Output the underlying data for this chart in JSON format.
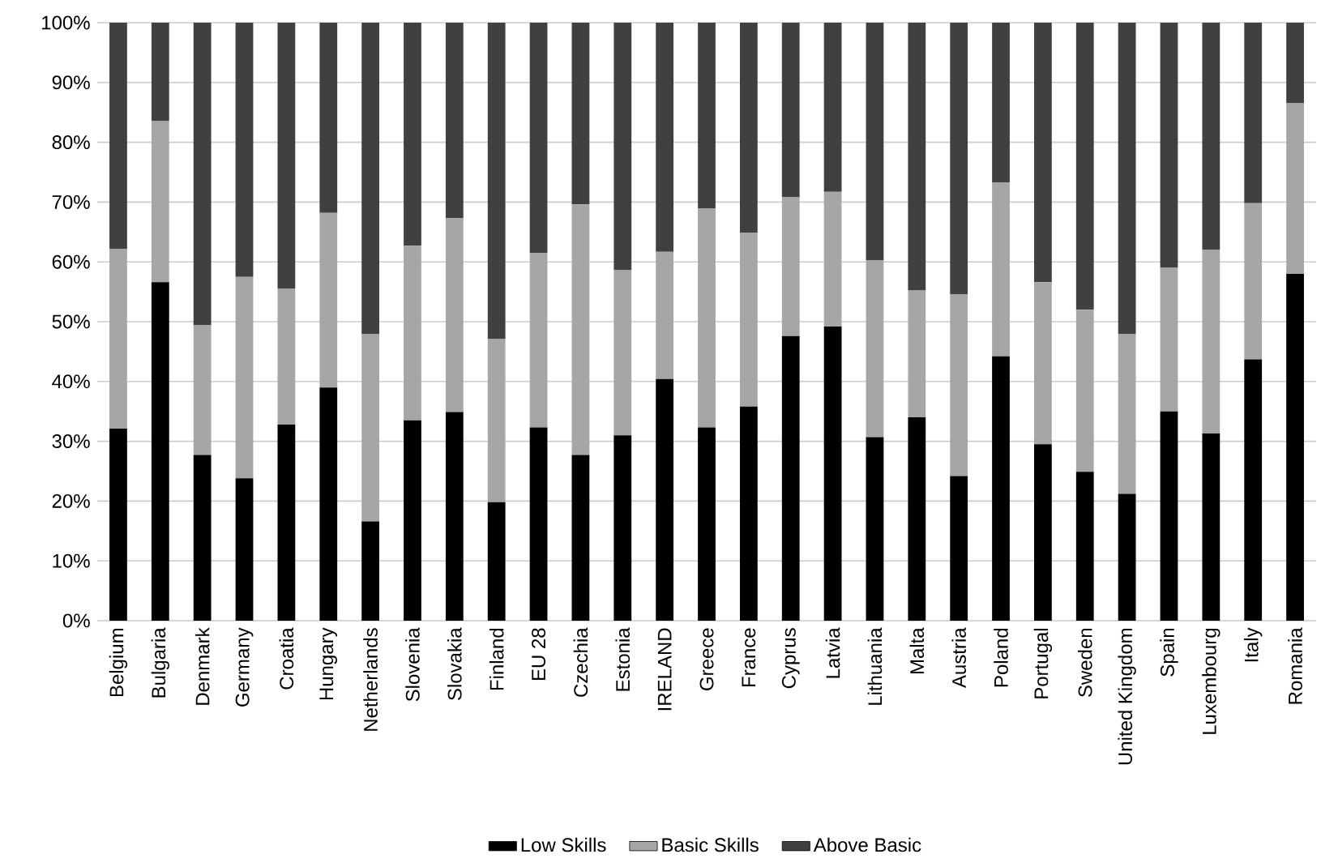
{
  "chart_data": {
    "type": "bar",
    "stacked": true,
    "grid": "y",
    "legend": "bottom",
    "categories": [
      "Belgium",
      "Bulgaria",
      "Denmark",
      "Germany",
      "Croatia",
      "Hungary",
      "Netherlands",
      "Slovenia",
      "Slovakia",
      "Finland",
      "EU 28",
      "Czechia",
      "Estonia",
      "IRELAND",
      "Greece",
      "France",
      "Cyprus",
      "Latvia",
      "Lithuania",
      "Malta",
      "Austria",
      "Poland",
      "Portugal",
      "Sweden",
      "United Kingdom",
      "Spain",
      "Luxembourg",
      "Italy",
      "Romania"
    ],
    "series": [
      {
        "name": "Low Skills",
        "color": "#000000",
        "values": [
          32.1,
          56.6,
          27.7,
          23.8,
          32.8,
          39.0,
          16.6,
          33.5,
          34.9,
          19.8,
          32.3,
          27.7,
          31.0,
          40.4,
          32.3,
          35.8,
          47.6,
          49.2,
          30.7,
          34.0,
          24.2,
          44.2,
          29.5,
          24.9,
          21.2,
          35.0,
          31.3,
          43.7,
          58.0
        ]
      },
      {
        "name": "Basic Skills",
        "color": "#a6a6a6",
        "values": [
          30.1,
          27.0,
          21.7,
          33.7,
          22.7,
          29.2,
          31.3,
          29.2,
          32.4,
          27.3,
          29.2,
          41.9,
          27.6,
          21.3,
          36.6,
          29.1,
          23.2,
          22.5,
          29.6,
          21.2,
          30.4,
          29.1,
          27.1,
          27.1,
          26.7,
          24.0,
          30.7,
          26.1,
          28.5
        ]
      },
      {
        "name": "Above Basic",
        "color": "#404040",
        "values": [
          37.8,
          16.4,
          50.6,
          42.5,
          44.5,
          31.8,
          52.1,
          37.3,
          32.7,
          52.9,
          38.5,
          30.4,
          41.4,
          38.3,
          31.1,
          35.1,
          29.2,
          28.3,
          39.7,
          44.8,
          45.4,
          26.7,
          43.4,
          48.0,
          52.1,
          41.0,
          38.0,
          30.2,
          13.5
        ]
      }
    ],
    "ylim": [
      0,
      100
    ],
    "yticks": [
      {
        "value": 0,
        "label": "0%"
      },
      {
        "value": 10,
        "label": "10%"
      },
      {
        "value": 20,
        "label": "20%"
      },
      {
        "value": 30,
        "label": "30%"
      },
      {
        "value": 40,
        "label": "40%"
      },
      {
        "value": 50,
        "label": "50%"
      },
      {
        "value": 60,
        "label": "60%"
      },
      {
        "value": 70,
        "label": "70%"
      },
      {
        "value": 80,
        "label": "80%"
      },
      {
        "value": 90,
        "label": "90%"
      },
      {
        "value": 100,
        "label": "100%"
      }
    ]
  }
}
